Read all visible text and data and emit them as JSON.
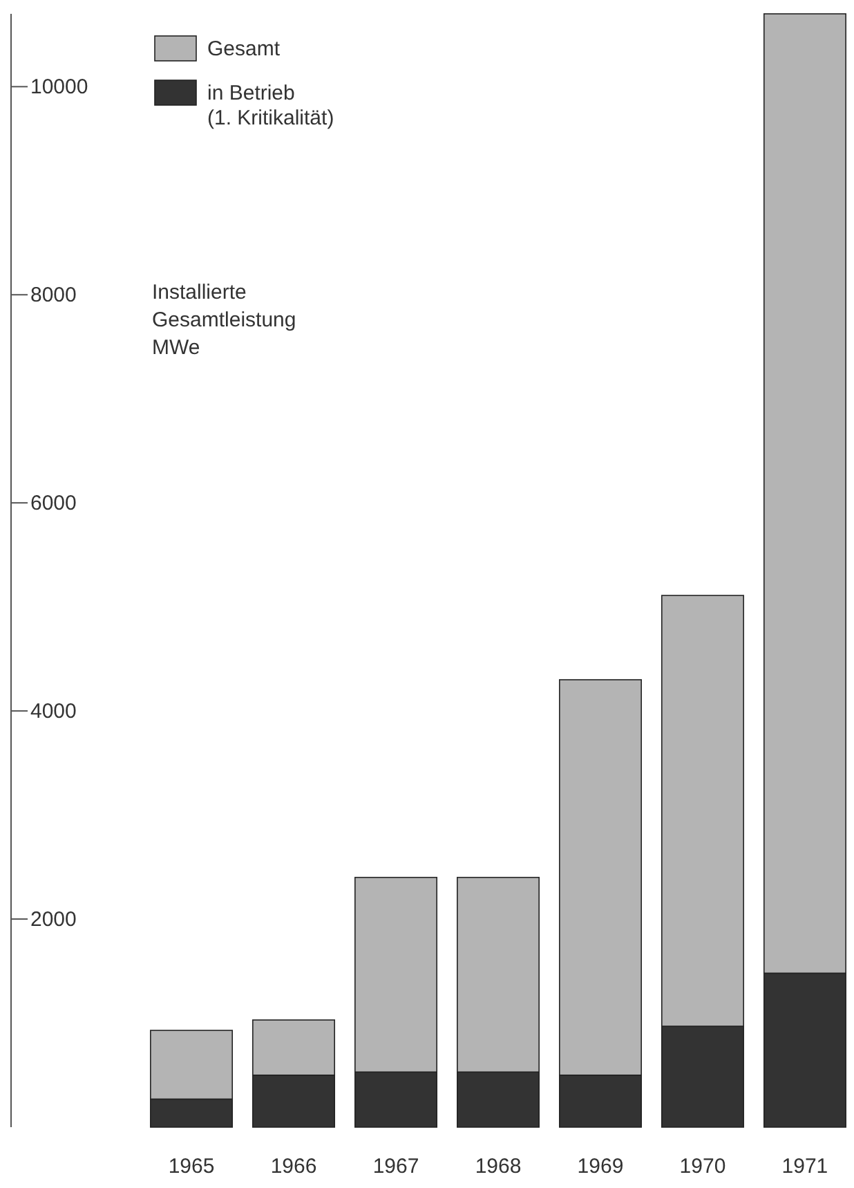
{
  "chart_data": {
    "type": "bar",
    "stacked": true,
    "ylabel": "Installierte Gesamtleistung MWe",
    "categories": [
      "1965",
      "1966",
      "1967",
      "1968",
      "1969",
      "1970",
      "1971"
    ],
    "series": [
      {
        "name": "in Betrieb (1. Kritikalität)",
        "color": "#333333",
        "values": [
          270,
          500,
          530,
          530,
          500,
          970,
          1480
        ]
      },
      {
        "name": "Gesamt",
        "color": "#b4b4b4",
        "values": [
          660,
          530,
          1870,
          1870,
          3800,
          4140,
          9220
        ]
      }
    ],
    "ylim": [
      0,
      10700
    ],
    "yticks": [
      2000,
      4000,
      6000,
      8000,
      10000
    ],
    "grid": false,
    "legend": "top left"
  }
}
